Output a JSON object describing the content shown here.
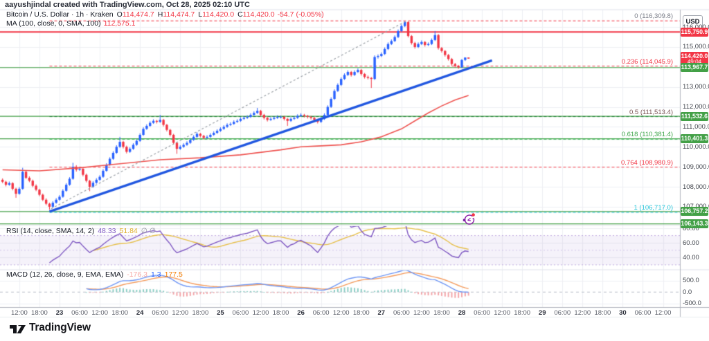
{
  "attribution": "aayushjindal created with TradingView.com, Oct 28, 2025 02:10 UTC",
  "symbol_legend": {
    "title": "Bitcoin / U.S. Dollar · 1h · Kraken",
    "o_label": "O",
    "o": "114,474.7",
    "h_label": "H",
    "h": "114,474.7",
    "l_label": "L",
    "l": "114,420.0",
    "c_label": "C",
    "c": "114,420.0",
    "change": "-54.7 (-0.05%)"
  },
  "ma_legend": {
    "title": "MA (100, close, 0, SMA, 100)",
    "value": "112,575.1"
  },
  "rsi_legend": {
    "title": "RSI (14, close, SMA, 14, 2)",
    "value": "48.33",
    "ma_value": "51.84",
    "empty": "∅ ∅"
  },
  "macd_legend": {
    "title": "MACD (12, 26, close, 9, EMA, EMA)",
    "histogram": "-176.3",
    "macd": "1.3",
    "signal": "177.5"
  },
  "axis": {
    "currency": "USD",
    "countdown": "49:04",
    "price_ticks": [
      {
        "label": "116,000.0",
        "price": 116000
      },
      {
        "label": "115,000.0",
        "price": 115000
      },
      {
        "label": "113,000.0",
        "price": 113000
      },
      {
        "label": "112,000.0",
        "price": 112000
      },
      {
        "label": "111,000.0",
        "price": 111000
      },
      {
        "label": "110,000.0",
        "price": 110000
      },
      {
        "label": "109,000.0",
        "price": 109000
      },
      {
        "label": "108,000.0",
        "price": 108000
      },
      {
        "label": "107,000.0",
        "price": 107000
      }
    ],
    "rsi_ticks": [
      {
        "label": "80.00",
        "value": 80
      },
      {
        "label": "60.00",
        "value": 60
      },
      {
        "label": "40.00",
        "value": 40
      }
    ],
    "macd_ticks": [
      {
        "label": "500.0",
        "value": 500
      },
      {
        "label": "0.0",
        "value": 0
      },
      {
        "label": "-500.0",
        "value": -500
      }
    ],
    "time_ticks": [
      {
        "t": 6,
        "label": "12:00"
      },
      {
        "t": 12,
        "label": "18:00"
      },
      {
        "t": 18,
        "label": "23",
        "day": true
      },
      {
        "t": 24,
        "label": "06:00"
      },
      {
        "t": 30,
        "label": "12:00"
      },
      {
        "t": 36,
        "label": "18:00"
      },
      {
        "t": 42,
        "label": "24",
        "day": true
      },
      {
        "t": 48,
        "label": "06:00"
      },
      {
        "t": 54,
        "label": "12:00"
      },
      {
        "t": 60,
        "label": "18:00"
      },
      {
        "t": 66,
        "label": "25",
        "day": true
      },
      {
        "t": 72,
        "label": "06:00"
      },
      {
        "t": 78,
        "label": "12:00"
      },
      {
        "t": 84,
        "label": "18:00"
      },
      {
        "t": 90,
        "label": "26",
        "day": true
      },
      {
        "t": 96,
        "label": "06:00"
      },
      {
        "t": 102,
        "label": "12:00"
      },
      {
        "t": 108,
        "label": "18:00"
      },
      {
        "t": 114,
        "label": "27",
        "day": true
      },
      {
        "t": 120,
        "label": "06:00"
      },
      {
        "t": 126,
        "label": "12:00"
      },
      {
        "t": 132,
        "label": "18:00"
      },
      {
        "t": 138,
        "label": "28",
        "day": true
      },
      {
        "t": 144,
        "label": "06:00"
      },
      {
        "t": 150,
        "label": "12:00"
      },
      {
        "t": 156,
        "label": "18:00"
      },
      {
        "t": 162,
        "label": "29",
        "day": true
      },
      {
        "t": 168,
        "label": "06:00"
      },
      {
        "t": 174,
        "label": "12:00"
      },
      {
        "t": 180,
        "label": "18:00"
      },
      {
        "t": 186,
        "label": "30",
        "day": true
      },
      {
        "t": 192,
        "label": "06:00"
      },
      {
        "t": 198,
        "label": "12:00"
      }
    ],
    "badges": [
      {
        "text": "115,750.9",
        "price": 115750.9,
        "bg": "#f23645"
      },
      {
        "text": "114,420.0",
        "price": 114420.0,
        "bg": "#f23645",
        "countdown": "49:04"
      },
      {
        "text": "113,967.7",
        "price": 113967.7,
        "bg": "#43a047"
      },
      {
        "text": "111,532.6",
        "price": 111532.6,
        "bg": "#43a047"
      },
      {
        "text": "110,401.3",
        "price": 110401.3,
        "bg": "#43a047"
      },
      {
        "text": "106,757.2",
        "price": 106757.2,
        "bg": "#43a047"
      },
      {
        "text": "106,143.3",
        "price": 106143.3,
        "bg": "#43a047"
      }
    ]
  },
  "footer": {
    "brand": "TradingView"
  },
  "chart_data": {
    "type": "candlestick",
    "symbol": "Bitcoin / U.S. Dollar",
    "timeframe": "1h",
    "exchange": "Kraken",
    "start": "2025-10-22 07:00 UTC",
    "interval_hours": 1,
    "ylim": [
      106095,
      116870
    ],
    "grid": true,
    "horizontal_levels": [
      {
        "price": 115750.9,
        "color": "#f23645",
        "width": 2
      },
      {
        "price": 113967.7,
        "color": "#43a047",
        "width": 1.2
      },
      {
        "price": 111532.6,
        "color": "#43a047",
        "width": 1.2
      },
      {
        "price": 110401.3,
        "color": "#43a047",
        "width": 1.2
      },
      {
        "price": 106757.2,
        "color": "#43a047",
        "width": 1.2
      },
      {
        "price": 106143.3,
        "color": "#43a047",
        "width": 1.2
      }
    ],
    "fib_levels": [
      {
        "label": "0 (116,309.8)",
        "price": 116309.8,
        "line_color": "#f23645",
        "label_color": "#787b86"
      },
      {
        "label": "0.236 (114,045.9)",
        "price": 114045.9,
        "line_color": "#f23645",
        "label_color": "#f23645"
      },
      {
        "label": "0.5 (111,513.4)",
        "price": 111513.4,
        "line_color": "#1e7d36",
        "label_color": "#7a5454"
      },
      {
        "label": "0.618 (110,381.4)",
        "price": 110381.4,
        "line_color": "#31b855",
        "label_color": "#3fa64b"
      },
      {
        "label": "0.764 (108,980.9)",
        "price": 108980.9,
        "line_color": "#f23645",
        "label_color": "#f23645"
      },
      {
        "label": "1 (106,717.0)",
        "price": 106717.0,
        "line_color": "#26c6da",
        "label_color": "#26c6da"
      }
    ],
    "trendlines": [
      {
        "name": "blue-support-trendline",
        "t1": 15,
        "p1": 106760,
        "t2": 147,
        "p2": 114330,
        "color": "#2157e0",
        "width": 3.4,
        "dash": []
      },
      {
        "name": "gray-dashed-trendline",
        "t1": 15.5,
        "p1": 106900,
        "t2": 121.2,
        "p2": 116280,
        "color": "#9aa0a6",
        "width": 1.2,
        "dash": [
          3,
          3
        ]
      }
    ],
    "ma100_path": [
      [
        1,
        108850
      ],
      [
        12,
        108800
      ],
      [
        24,
        108950
      ],
      [
        36,
        109150
      ],
      [
        48,
        109350
      ],
      [
        60,
        109450
      ],
      [
        72,
        109600
      ],
      [
        84,
        109850
      ],
      [
        90,
        110000
      ],
      [
        96,
        110050
      ],
      [
        102,
        110100
      ],
      [
        108,
        110250
      ],
      [
        114,
        110500
      ],
      [
        120,
        110900
      ],
      [
        124,
        111300
      ],
      [
        128,
        111700
      ],
      [
        132,
        112050
      ],
      [
        136,
        112350
      ],
      [
        140,
        112575
      ]
    ],
    "indicators": {
      "rsi": {
        "params": "14, close, SMA, 14, 2",
        "last": 48.33,
        "ma_last": 51.84,
        "bands": [
          70,
          50,
          30
        ],
        "range_hint": [
          24,
          84
        ]
      },
      "macd": {
        "params": "12, 26, close, 9, EMA, EMA",
        "histogram_last": -176.3,
        "macd_last": 1.3,
        "signal_last": 177.5,
        "range_hint": [
          -660,
          980
        ]
      }
    },
    "ohlc": [
      [
        108350,
        108420,
        108180,
        108250
      ],
      [
        108250,
        108300,
        108020,
        108100
      ],
      [
        108100,
        108260,
        108050,
        108180
      ],
      [
        108180,
        108230,
        107820,
        107900
      ],
      [
        107900,
        107950,
        107450,
        107650
      ],
      [
        107650,
        107980,
        107600,
        107900
      ],
      [
        107900,
        108950,
        107850,
        108750
      ],
      [
        108750,
        108800,
        108380,
        108450
      ],
      [
        108450,
        108520,
        108230,
        108300
      ],
      [
        108300,
        108360,
        107980,
        108050
      ],
      [
        108050,
        108120,
        107780,
        107850
      ],
      [
        107850,
        107900,
        107530,
        107600
      ],
      [
        107600,
        107660,
        107280,
        107350
      ],
      [
        107350,
        107420,
        107080,
        107150
      ],
      [
        107150,
        107200,
        106850,
        107000
      ],
      [
        107000,
        107280,
        106930,
        107200
      ],
      [
        107200,
        107430,
        107150,
        107350
      ],
      [
        107350,
        107580,
        107300,
        107500
      ],
      [
        107500,
        107880,
        107450,
        107800
      ],
      [
        107800,
        108180,
        107750,
        108100
      ],
      [
        108100,
        108480,
        108050,
        108400
      ],
      [
        108400,
        109200,
        108350,
        109000
      ],
      [
        109000,
        109080,
        108760,
        108850
      ],
      [
        108850,
        108980,
        108800,
        108900
      ],
      [
        108900,
        108950,
        108520,
        108600
      ],
      [
        108600,
        108660,
        108220,
        108300
      ],
      [
        108300,
        108350,
        107780,
        108000
      ],
      [
        108000,
        108280,
        107950,
        108200
      ],
      [
        108200,
        108430,
        108150,
        108350
      ],
      [
        108350,
        108580,
        108300,
        108500
      ],
      [
        108500,
        108880,
        108450,
        108800
      ],
      [
        108800,
        109180,
        108750,
        109100
      ],
      [
        109100,
        109480,
        109050,
        109400
      ],
      [
        109400,
        109780,
        109350,
        109700
      ],
      [
        109700,
        110080,
        109650,
        110000
      ],
      [
        110000,
        110500,
        109950,
        110250
      ],
      [
        110250,
        110300,
        109920,
        110000
      ],
      [
        110000,
        110060,
        109670,
        109750
      ],
      [
        109750,
        109980,
        109700,
        109900
      ],
      [
        109900,
        110180,
        109850,
        110100
      ],
      [
        110100,
        110380,
        110050,
        110300
      ],
      [
        110300,
        110680,
        110250,
        110600
      ],
      [
        110600,
        110980,
        110550,
        110900
      ],
      [
        110900,
        111130,
        110850,
        111050
      ],
      [
        111050,
        111280,
        111000,
        111200
      ],
      [
        111200,
        111380,
        111150,
        111300
      ],
      [
        111300,
        111350,
        111170,
        111250
      ],
      [
        111250,
        111600,
        111200,
        111350
      ],
      [
        111350,
        111400,
        111020,
        111100
      ],
      [
        111100,
        111150,
        110770,
        110850
      ],
      [
        110850,
        110900,
        110520,
        110600
      ],
      [
        110600,
        110650,
        110120,
        110200
      ],
      [
        110200,
        110250,
        109650,
        109900
      ],
      [
        109900,
        110080,
        109850,
        110000
      ],
      [
        110000,
        110180,
        109950,
        110100
      ],
      [
        110100,
        110280,
        110050,
        110200
      ],
      [
        110200,
        110430,
        110150,
        110350
      ],
      [
        110350,
        110580,
        110300,
        110500
      ],
      [
        110500,
        110730,
        110450,
        110650
      ],
      [
        110650,
        110700,
        110470,
        110550
      ],
      [
        110550,
        110600,
        110370,
        110450
      ],
      [
        110450,
        110580,
        110400,
        110500
      ],
      [
        110500,
        110680,
        110450,
        110600
      ],
      [
        110600,
        110780,
        110550,
        110700
      ],
      [
        110700,
        110880,
        110650,
        110800
      ],
      [
        110800,
        110980,
        110750,
        110900
      ],
      [
        110900,
        111080,
        110850,
        111000
      ],
      [
        111000,
        111180,
        110950,
        111100
      ],
      [
        111100,
        111230,
        111050,
        111150
      ],
      [
        111150,
        111330,
        111100,
        111250
      ],
      [
        111250,
        111380,
        111200,
        111300
      ],
      [
        111300,
        111480,
        111250,
        111400
      ],
      [
        111400,
        111530,
        111350,
        111450
      ],
      [
        111450,
        111580,
        111400,
        111500
      ],
      [
        111500,
        111680,
        111450,
        111600
      ],
      [
        111600,
        111780,
        111550,
        111700
      ],
      [
        111700,
        111950,
        111650,
        111800
      ],
      [
        111800,
        111850,
        111520,
        111600
      ],
      [
        111600,
        111650,
        111370,
        111450
      ],
      [
        111450,
        111500,
        111270,
        111350
      ],
      [
        111350,
        111480,
        111300,
        111400
      ],
      [
        111400,
        111530,
        111350,
        111450
      ],
      [
        111450,
        111580,
        111400,
        111500
      ],
      [
        111500,
        111570,
        111420,
        111500
      ],
      [
        111500,
        111550,
        111320,
        111400
      ],
      [
        111400,
        111450,
        111050,
        111300
      ],
      [
        111300,
        111480,
        111250,
        111400
      ],
      [
        111400,
        111530,
        111350,
        111450
      ],
      [
        111450,
        111630,
        111400,
        111550
      ],
      [
        111550,
        111680,
        111500,
        111600
      ],
      [
        111600,
        111650,
        111470,
        111550
      ],
      [
        111550,
        111600,
        111420,
        111500
      ],
      [
        111500,
        111550,
        111370,
        111450
      ],
      [
        111450,
        111500,
        111270,
        111350
      ],
      [
        111350,
        111400,
        111170,
        111250
      ],
      [
        111250,
        111480,
        111200,
        111400
      ],
      [
        111400,
        111680,
        111350,
        111600
      ],
      [
        111600,
        112080,
        111550,
        112000
      ],
      [
        112000,
        112480,
        111950,
        112400
      ],
      [
        112400,
        112880,
        112350,
        112800
      ],
      [
        112800,
        113180,
        112750,
        113100
      ],
      [
        113100,
        113480,
        113050,
        113400
      ],
      [
        113400,
        113680,
        113350,
        113600
      ],
      [
        113600,
        113830,
        113550,
        113750
      ],
      [
        113750,
        113800,
        113520,
        113600
      ],
      [
        113600,
        113830,
        113550,
        113750
      ],
      [
        113750,
        113930,
        113700,
        113850
      ],
      [
        113850,
        113900,
        113570,
        113650
      ],
      [
        113650,
        113700,
        113420,
        113500
      ],
      [
        113500,
        113570,
        113380,
        113450
      ],
      [
        113450,
        113500,
        112950,
        113400
      ],
      [
        113400,
        114580,
        113350,
        114500
      ],
      [
        114500,
        114630,
        114420,
        114550
      ],
      [
        114550,
        114730,
        114500,
        114650
      ],
      [
        114650,
        114980,
        114600,
        114900
      ],
      [
        114900,
        115230,
        114850,
        115150
      ],
      [
        115150,
        115380,
        115100,
        115300
      ],
      [
        115300,
        115580,
        115250,
        115500
      ],
      [
        115500,
        115880,
        115450,
        115800
      ],
      [
        115800,
        116130,
        115750,
        116050
      ],
      [
        116050,
        116310,
        116000,
        116250
      ],
      [
        116250,
        116290,
        115480,
        115550
      ],
      [
        115550,
        115600,
        115120,
        115200
      ],
      [
        115200,
        115260,
        114920,
        115000
      ],
      [
        115000,
        115230,
        114950,
        115150
      ],
      [
        115150,
        115330,
        115100,
        115250
      ],
      [
        115250,
        115300,
        115020,
        115100
      ],
      [
        115100,
        115230,
        115050,
        115150
      ],
      [
        115150,
        115430,
        115100,
        115350
      ],
      [
        115350,
        115800,
        115300,
        115600
      ],
      [
        115600,
        115650,
        114870,
        114950
      ],
      [
        114950,
        115000,
        114720,
        114800
      ],
      [
        114800,
        114850,
        114520,
        114600
      ],
      [
        114600,
        114650,
        114320,
        114400
      ],
      [
        114400,
        114450,
        114070,
        114150
      ],
      [
        114150,
        114200,
        113970,
        114050
      ],
      [
        114050,
        114100,
        113910,
        113980
      ],
      [
        113980,
        114400,
        113950,
        114350
      ],
      [
        114350,
        114480,
        114300,
        114474.7
      ],
      [
        114474.7,
        114474.7,
        114420,
        114420
      ]
    ]
  }
}
